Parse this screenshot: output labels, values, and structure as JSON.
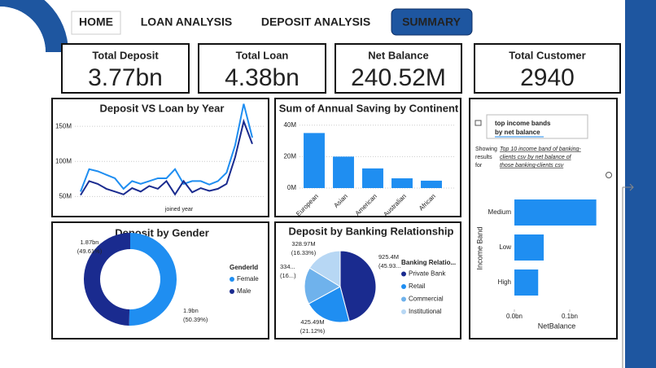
{
  "nav": [
    "HOME",
    "LOAN ANALYSIS",
    "DEPOSIT ANALYSIS",
    "SUMMARY"
  ],
  "kpis": [
    {
      "label": "Total Deposit",
      "value": "3.77bn"
    },
    {
      "label": "Total Loan",
      "value": "4.38bn"
    },
    {
      "label": "Net Balance",
      "value": "240.52M"
    },
    {
      "label": "Total Customer",
      "value": "2940"
    }
  ],
  "chart_data": [
    {
      "type": "line",
      "title": "Deposit VS Loan by Year",
      "x_label": "joined year",
      "categories": [
        null,
        null,
        null,
        null,
        null,
        null,
        null,
        null,
        null,
        null,
        null,
        null,
        null,
        null,
        null,
        null,
        null,
        null,
        null,
        null,
        null
      ],
      "series": [
        {
          "color": "#1f8ef1",
          "values": [
            57,
            89,
            86,
            81,
            76,
            61,
            72,
            68,
            72,
            76,
            76,
            89,
            68,
            72,
            72,
            67,
            72,
            84,
            123,
            182,
            134
          ]
        },
        {
          "color": "#1a2b8f",
          "values": [
            52,
            72,
            68,
            61,
            57,
            53,
            62,
            57,
            65,
            61,
            72,
            53,
            72,
            56,
            62,
            58,
            61,
            68,
            106,
            157,
            125
          ]
        }
      ],
      "ylim": [
        40,
        185
      ],
      "yticks": [
        {
          "value": 50,
          "label": "50M"
        },
        {
          "value": 100,
          "label": "100M"
        },
        {
          "value": 150,
          "label": "150M"
        }
      ],
      "grid": true
    },
    {
      "type": "bar",
      "title": "Sum of Annual Saving by Continent",
      "color": "#1f8ef1",
      "categories": [
        "European",
        "Asian",
        "American",
        "Australian",
        "African"
      ],
      "values": [
        35,
        20,
        12.5,
        6.2,
        4.7
      ],
      "ylim": [
        0,
        44
      ],
      "yticks": [
        {
          "value": 0,
          "label": "0M"
        },
        {
          "value": 20,
          "label": "20M"
        },
        {
          "value": 40,
          "label": "40M"
        }
      ],
      "grid": true
    },
    {
      "type": "donut",
      "title": "Deposit by Gender",
      "legend_title": "GenderId",
      "categories": [
        "Female",
        "Male"
      ],
      "colors": [
        "#1f8ef1",
        "#1a2b8f"
      ],
      "values": [
        1.9,
        1.87
      ],
      "value_labels": [
        "1.9bn",
        "1.87bn"
      ],
      "percents": [
        50.39,
        49.61
      ],
      "percent_labels": [
        "(50.39%)",
        "(49.61%)"
      ]
    },
    {
      "type": "pie",
      "title": "Deposit by Banking Relationship",
      "legend_title": "Banking Relatio...",
      "categories": [
        "Private Bank",
        "Retail",
        "Commercial",
        "Institutional"
      ],
      "colors": [
        "#1a2b8f",
        "#1f8ef1",
        "#6fb2ec",
        "#b7d7f4"
      ],
      "values": [
        925.4,
        425.49,
        334.9,
        328.97
      ],
      "value_labels": [
        "925.4M",
        "425.49M",
        "334...",
        "328.97M"
      ],
      "percents": [
        45.93,
        21.12,
        16.62,
        16.33
      ],
      "percent_labels": [
        "(45.93...",
        "(21.12%)",
        "(16...)",
        "(16.33%)"
      ]
    },
    {
      "type": "hbar",
      "question_lines": [
        "top income bands",
        "by net balance"
      ],
      "showing_lines": [
        "Showing",
        "results",
        "for"
      ],
      "restatement_lines": [
        "Top 10 income band of banking-",
        "clients csv by net balance of",
        "those banking-clients csv"
      ],
      "x_label": "NetBalance",
      "y_label": "Income Band",
      "color": "#1f8ef1",
      "categories": [
        "Medium",
        "Low",
        "High"
      ],
      "values": [
        0.148,
        0.053,
        0.043
      ],
      "xlim": [
        0,
        0.15
      ],
      "xticks": [
        {
          "value": 0,
          "label": "0.0bn"
        },
        {
          "value": 0.1,
          "label": "0.1bn"
        }
      ]
    }
  ]
}
